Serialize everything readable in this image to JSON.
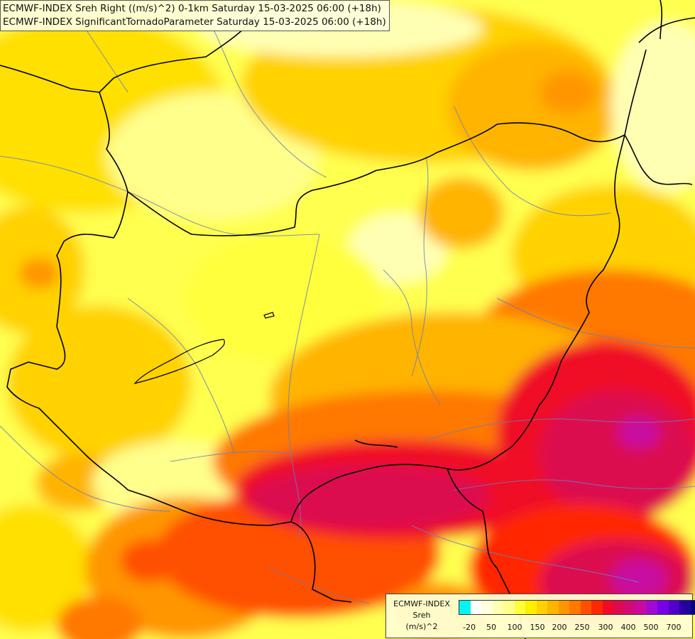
{
  "titles": [
    "ECMWF-INDEX Sreh Right ((m/s)^2) 0-1km Saturday 15-03-2025 06:00 (+18h)",
    "ECMWF-INDEX SignificantTornadoParameter Saturday 15-03-2025 06:00 (+18h)"
  ],
  "legend": {
    "model": "ECMWF-INDEX",
    "variable": "Sreh",
    "unit": "(m/s)^2",
    "colors": [
      "#00f5f5",
      "#ffffff",
      "#ffffdc",
      "#ffffb4",
      "#ffff8c",
      "#ffff3c",
      "#fff000",
      "#ffd200",
      "#ffb400",
      "#ff9600",
      "#ff7800",
      "#ff5000",
      "#ff2800",
      "#f00a28",
      "#dc0a50",
      "#d20a78",
      "#c80aa0",
      "#a00ad2",
      "#7800e6",
      "#5000c8",
      "#2800a0",
      "#000078"
    ],
    "labels": [
      "-20",
      "50",
      "100",
      "150",
      "200",
      "250",
      "300",
      "400",
      "500",
      "700"
    ]
  }
}
